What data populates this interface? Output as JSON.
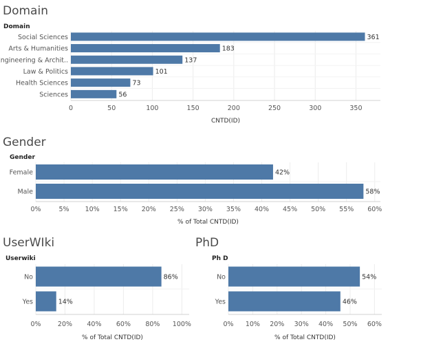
{
  "colors": {
    "bar": "#4e79a7",
    "grid": "#ececec",
    "axis": "#d0d0d0"
  },
  "chart_data": [
    {
      "id": "domain",
      "type": "bar",
      "orientation": "horizontal",
      "title": "Domain",
      "row_header": "Domain",
      "categories": [
        "Social Sciences",
        "Arts & Humanities",
        "Engineering & Archit..",
        "Law & Politics",
        "Health Sciences",
        "Sciences"
      ],
      "values": [
        361,
        183,
        137,
        101,
        73,
        56
      ],
      "value_labels": [
        "361",
        "183",
        "137",
        "101",
        "73",
        "56"
      ],
      "xlim": [
        0,
        380
      ],
      "ticks": [
        0,
        50,
        100,
        150,
        200,
        250,
        300,
        350
      ],
      "tick_labels": [
        "0",
        "50",
        "100",
        "150",
        "200",
        "250",
        "300",
        "350"
      ],
      "xlabel": "CNTD(ID)"
    },
    {
      "id": "gender",
      "type": "bar",
      "orientation": "horizontal",
      "title": "Gender",
      "row_header": "Gender",
      "categories": [
        "Female",
        "Male"
      ],
      "values": [
        42,
        58
      ],
      "value_labels": [
        "42%",
        "58%"
      ],
      "xlim": [
        0,
        61
      ],
      "ticks": [
        0,
        5,
        10,
        15,
        20,
        25,
        30,
        35,
        40,
        45,
        50,
        55,
        60
      ],
      "tick_labels": [
        "0%",
        "5%",
        "10%",
        "15%",
        "20%",
        "25%",
        "30%",
        "35%",
        "40%",
        "45%",
        "50%",
        "55%",
        "60%"
      ],
      "xlabel": "% of Total CNTD(ID)"
    },
    {
      "id": "userwiki",
      "type": "bar",
      "orientation": "horizontal",
      "title": "UserWIki",
      "row_header": "Userwiki",
      "categories": [
        "No",
        "Yes"
      ],
      "values": [
        86,
        14
      ],
      "value_labels": [
        "86%",
        "14%"
      ],
      "xlim": [
        0,
        105
      ],
      "ticks": [
        0,
        20,
        40,
        60,
        80,
        100
      ],
      "tick_labels": [
        "0%",
        "20%",
        "40%",
        "60%",
        "80%",
        "100%"
      ],
      "xlabel": "% of Total CNTD(ID)"
    },
    {
      "id": "phd",
      "type": "bar",
      "orientation": "horizontal",
      "title": "PhD",
      "row_header": "Ph D",
      "categories": [
        "No",
        "Yes"
      ],
      "values": [
        54,
        46
      ],
      "value_labels": [
        "54%",
        "46%"
      ],
      "xlim": [
        0,
        63
      ],
      "ticks": [
        0,
        10,
        20,
        30,
        40,
        50,
        60
      ],
      "tick_labels": [
        "0%",
        "10%",
        "20%",
        "30%",
        "40%",
        "50%",
        "60%"
      ],
      "xlabel": "% of Total CNTD(ID)"
    }
  ]
}
